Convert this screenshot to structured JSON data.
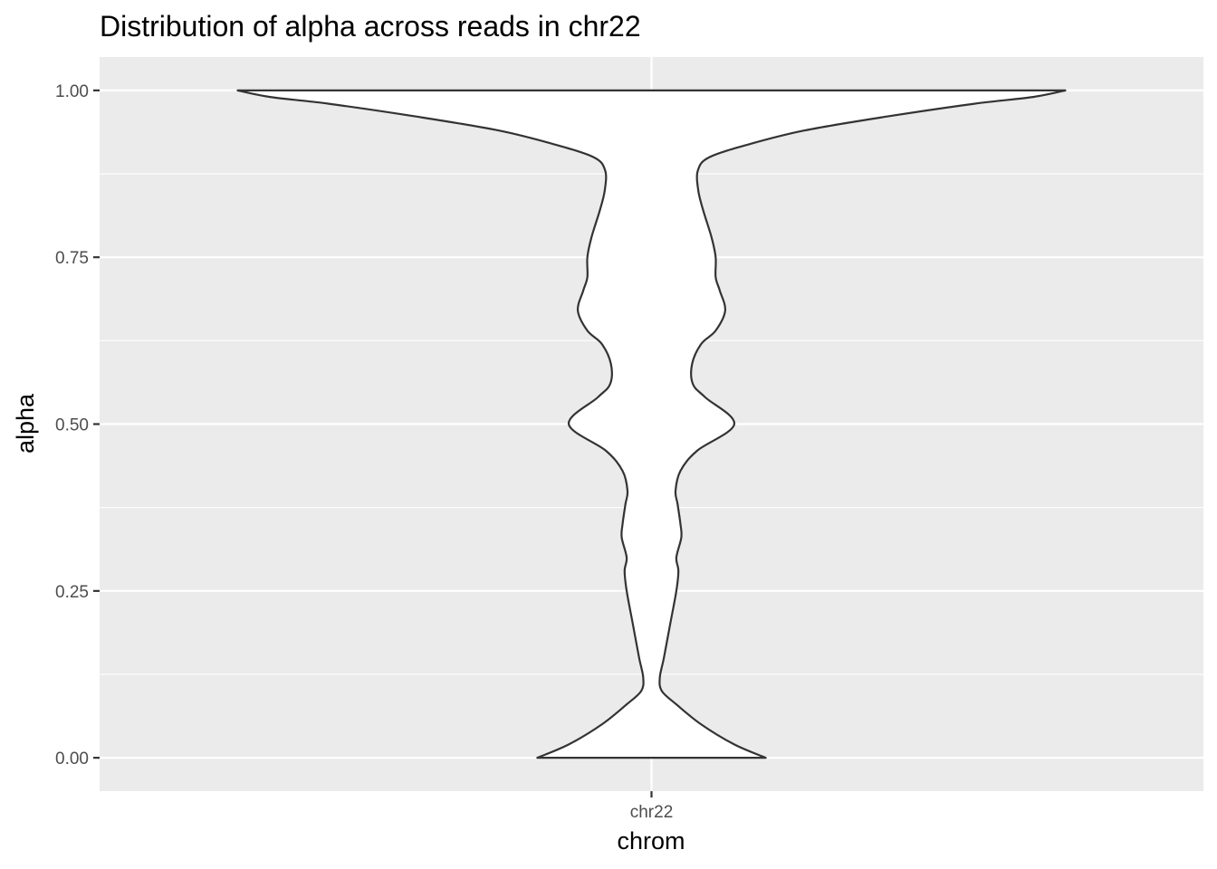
{
  "chart_data": {
    "type": "violin",
    "title": "Distribution of alpha across reads in chr22",
    "xlabel": "chrom",
    "ylabel": "alpha",
    "categories": [
      "chr22"
    ],
    "ylim": [
      -0.05,
      1.05
    ],
    "yticks": [
      0.0,
      0.25,
      0.5,
      0.75,
      1.0
    ],
    "ytick_labels": [
      "0.00",
      "0.25",
      "0.50",
      "0.75",
      "1.00"
    ],
    "grid": true,
    "legend": "none",
    "colors": {
      "panel_background": "#ebebeb",
      "grid_major": "#ffffff",
      "violin_fill": "#ffffff",
      "violin_outline": "#333333",
      "tick_label": "#4d4d4d"
    },
    "density_profile": {
      "category": "chr22",
      "note_units": "alpha vs relative half-width (1.0 = widest point)",
      "alpha": [
        0.0,
        0.02,
        0.05,
        0.08,
        0.1,
        0.12,
        0.15,
        0.2,
        0.25,
        0.28,
        0.3,
        0.33,
        0.35,
        0.38,
        0.4,
        0.43,
        0.46,
        0.5,
        0.54,
        0.56,
        0.59,
        0.62,
        0.64,
        0.67,
        0.7,
        0.72,
        0.75,
        0.78,
        0.82,
        0.85,
        0.88,
        0.9,
        0.92,
        0.94,
        0.96,
        0.98,
        0.99,
        1.0
      ],
      "half_width": [
        0.276,
        0.2,
        0.12,
        0.06,
        0.025,
        0.02,
        0.03,
        0.045,
        0.06,
        0.065,
        0.06,
        0.072,
        0.07,
        0.063,
        0.058,
        0.07,
        0.11,
        0.2,
        0.13,
        0.1,
        0.098,
        0.12,
        0.155,
        0.178,
        0.165,
        0.155,
        0.155,
        0.145,
        0.125,
        0.113,
        0.112,
        0.14,
        0.24,
        0.37,
        0.56,
        0.78,
        0.92,
        1.0
      ]
    }
  }
}
